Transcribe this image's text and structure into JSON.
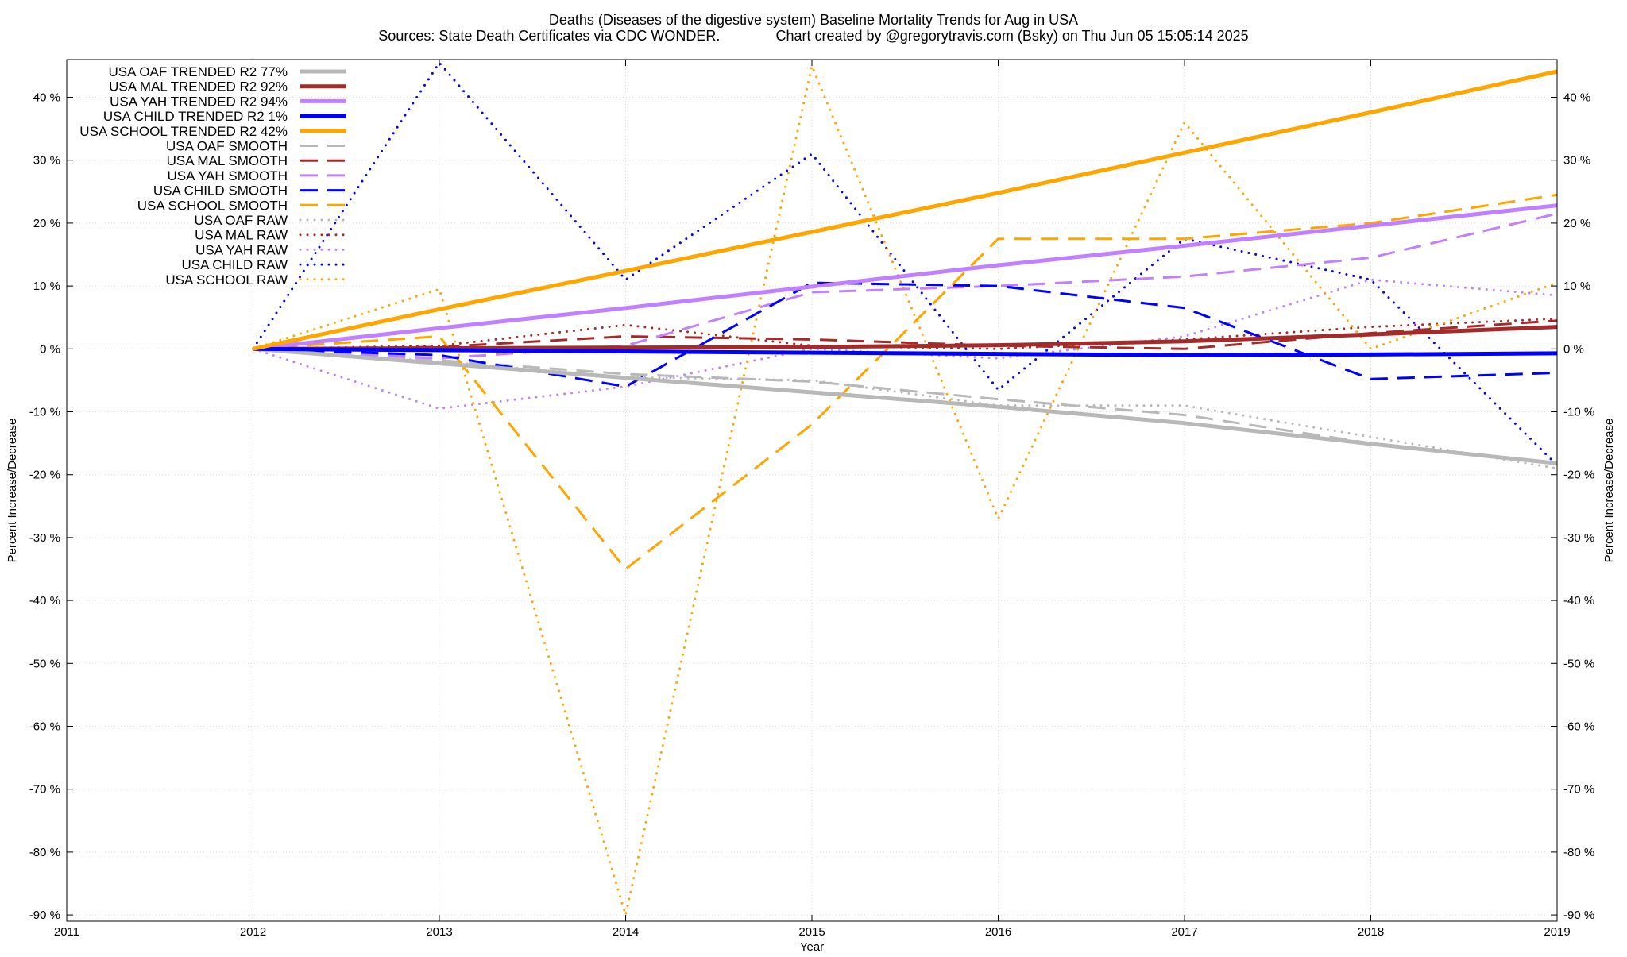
{
  "chart_data": {
    "type": "line",
    "title": "Deaths (Diseases of the digestive system)  Baseline Mortality Trends for Aug in USA",
    "subtitle": "Sources: State Death Certificates via CDC WONDER.              Chart created by @gregorytravis.com (Bsky) on Thu Jun 05 15:05:14 2025",
    "xlabel": "Year",
    "ylabel": "Percent Increase/Decrease",
    "y2label": "Percent Increase/Decrease",
    "xlim": [
      2011,
      2019
    ],
    "ylim": [
      -91,
      46
    ],
    "x_ticks": [
      "2011",
      "2012",
      "2013",
      "2014",
      "2015",
      "2016",
      "2017",
      "2018",
      "2019"
    ],
    "y_ticks": [
      "40 %",
      "30 %",
      "20 %",
      "10 %",
      "0 %",
      "-10 %",
      "-20 %",
      "-30 %",
      "-40 %",
      "-50 %",
      "-60 %",
      "-70 %",
      "-80 %",
      "-90 %"
    ],
    "grid": true,
    "legend_position": "top-left",
    "x": [
      2012,
      2013,
      2014,
      2015,
      2016,
      2017,
      2018,
      2019
    ],
    "series": [
      {
        "name": "USA OAF TRENDED R2  77%",
        "style": "solid",
        "color": "#b8b8b8",
        "values": [
          0,
          -2.3,
          -4.6,
          -6.9,
          -9.2,
          -11.8,
          -15.1,
          -18.2
        ]
      },
      {
        "name": "USA MAL TRENDED R2  92%",
        "style": "solid",
        "color": "#a52a2a",
        "values": [
          0,
          0.1,
          0.2,
          0.3,
          0.6,
          1.2,
          2.3,
          3.5
        ]
      },
      {
        "name": "USA YAH TRENDED R2  94%",
        "style": "solid",
        "color": "#c080ff",
        "values": [
          0,
          3.3,
          6.5,
          9.9,
          13.3,
          16.4,
          19.6,
          22.8
        ]
      },
      {
        "name": "USA CHILD TRENDED R2   1%",
        "style": "solid",
        "color": "#0000ff",
        "values": [
          0,
          -0.2,
          -0.4,
          -0.6,
          -0.8,
          -1.0,
          -0.9,
          -0.7
        ]
      },
      {
        "name": "USA SCHOOL TRENDED R2  42%",
        "style": "solid",
        "color": "#ffa500",
        "values": [
          0,
          6.3,
          12.4,
          18.6,
          24.8,
          31.2,
          37.6,
          44.1
        ]
      },
      {
        "name": "USA OAF SMOOTH",
        "style": "dashed",
        "color": "#b8b8b8",
        "values": [
          0,
          -1.8,
          -4.0,
          -5.2,
          -8.0,
          -10.5,
          -15.0,
          -18.2
        ]
      },
      {
        "name": "USA MAL SMOOTH",
        "style": "dashed",
        "color": "#a52a2a",
        "values": [
          0,
          0.3,
          2.0,
          1.5,
          0.5,
          0.0,
          2.5,
          4.5
        ]
      },
      {
        "name": "USA YAH SMOOTH",
        "style": "dashed",
        "color": "#c080ff",
        "values": [
          0,
          -1.5,
          0.5,
          9.0,
          10.0,
          11.5,
          14.5,
          21.5
        ]
      },
      {
        "name": "USA CHILD SMOOTH",
        "style": "dashed",
        "color": "#0000ff",
        "values": [
          0,
          -1.0,
          -6.0,
          10.5,
          10.0,
          6.5,
          -4.8,
          -3.8
        ]
      },
      {
        "name": "USA SCHOOL SMOOTH",
        "style": "dashed",
        "color": "#ffa500",
        "values": [
          0,
          2.0,
          -35.0,
          -12.0,
          17.5,
          17.5,
          20.0,
          24.5
        ]
      },
      {
        "name": "USA OAF RAW",
        "style": "dotted",
        "color": "#b8b8b8",
        "values": [
          0,
          -2.0,
          -4.5,
          -5.0,
          -9.0,
          -9.0,
          -14.0,
          -19.0
        ]
      },
      {
        "name": "USA MAL RAW",
        "style": "dotted",
        "color": "#a52a2a",
        "values": [
          0,
          0.5,
          3.8,
          0.5,
          0.0,
          1.5,
          3.5,
          4.8
        ]
      },
      {
        "name": "USA YAH RAW",
        "style": "dotted",
        "color": "#c080ff",
        "values": [
          0,
          -9.5,
          -6.0,
          0.0,
          -1.5,
          2.0,
          11.0,
          8.5
        ]
      },
      {
        "name": "USA CHILD RAW",
        "style": "dotted",
        "color": "#0000ff",
        "values": [
          0,
          45.5,
          11.0,
          31.0,
          -6.5,
          17.5,
          11.0,
          -18.5
        ]
      },
      {
        "name": "USA SCHOOL RAW",
        "style": "dotted",
        "color": "#ffa500",
        "values": [
          0,
          9.5,
          -90.0,
          45.0,
          -27.0,
          36.0,
          0.0,
          10.5
        ]
      }
    ]
  }
}
